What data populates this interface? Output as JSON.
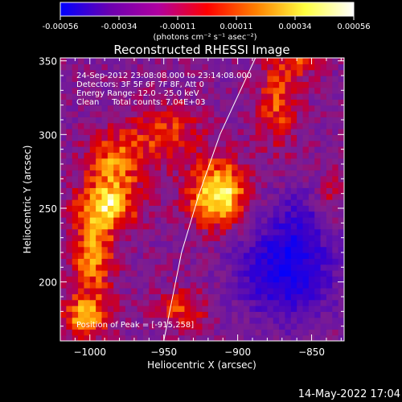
{
  "chart_data": {
    "type": "heatmap",
    "title": "Reconstructed RHESSI Image",
    "xlabel": "Heliocentric X (arcsec)",
    "ylabel": "Heliocentric Y (arcsec)",
    "xlim": [
      -1020,
      -828
    ],
    "ylim": [
      160,
      352
    ],
    "x_ticks": [
      -1000,
      -950,
      -900,
      -850
    ],
    "y_ticks": [
      200,
      250,
      300,
      350
    ],
    "colorbar": {
      "range": [
        -0.00056,
        0.00056
      ],
      "ticks": [
        "-0.00056",
        "-0.00034",
        "-0.00011",
        "0.00011",
        "0.00034",
        "0.00056"
      ],
      "unit_label": "(photons cm⁻² s⁻¹ asec⁻²)",
      "colors": [
        "#0000ff",
        "#6a00b0",
        "#b000a0",
        "#ff0000",
        "#ff8000",
        "#ffff40",
        "#ffffff"
      ]
    },
    "annotations": {
      "time_range": "24-Sep-2012 23:08:08.000 to 23:14:08.000",
      "detectors": "Detectors: 3F 5F 6F 7F 8F, Att 0",
      "energy_range": "Energy Range: 12.0 - 25.0 keV",
      "clean": "Clean     Total counts: 7.04E+03",
      "peak": "Position of Peak = [-915,258]"
    },
    "peak": {
      "x": -915,
      "y": 258
    },
    "limb_curve": [
      [
        -950,
        160
      ],
      [
        -938,
        220
      ],
      [
        -926,
        260
      ],
      [
        -912,
        300
      ],
      [
        -888,
        352
      ]
    ],
    "emission_sources": [
      {
        "x": -915,
        "y": 258,
        "amp": 1.0,
        "sx": 14,
        "sy": 16
      },
      {
        "x": -990,
        "y": 250,
        "amp": 0.8,
        "sx": 15,
        "sy": 12
      },
      {
        "x": -985,
        "y": 280,
        "amp": 0.6,
        "sx": 14,
        "sy": 14
      },
      {
        "x": -1000,
        "y": 215,
        "amp": 0.7,
        "sx": 10,
        "sy": 18
      },
      {
        "x": -1005,
        "y": 175,
        "amp": 0.7,
        "sx": 12,
        "sy": 10
      },
      {
        "x": -940,
        "y": 180,
        "amp": 0.5,
        "sx": 12,
        "sy": 10
      },
      {
        "x": -875,
        "y": 320,
        "amp": 0.5,
        "sx": 10,
        "sy": 22
      },
      {
        "x": -950,
        "y": 300,
        "amp": 0.45,
        "sx": 18,
        "sy": 14
      },
      {
        "x": -840,
        "y": 250,
        "amp": 0.4,
        "sx": 8,
        "sy": 15
      },
      {
        "x": -860,
        "y": 350,
        "amp": 0.4,
        "sx": 10,
        "sy": 10
      },
      {
        "x": -870,
        "y": 205,
        "amp": -0.8,
        "sx": 22,
        "sy": 22
      },
      {
        "x": -855,
        "y": 240,
        "amp": -0.35,
        "sx": 18,
        "sy": 16
      }
    ]
  },
  "footer": {
    "timestamp": "14-May-2022 17:04"
  }
}
